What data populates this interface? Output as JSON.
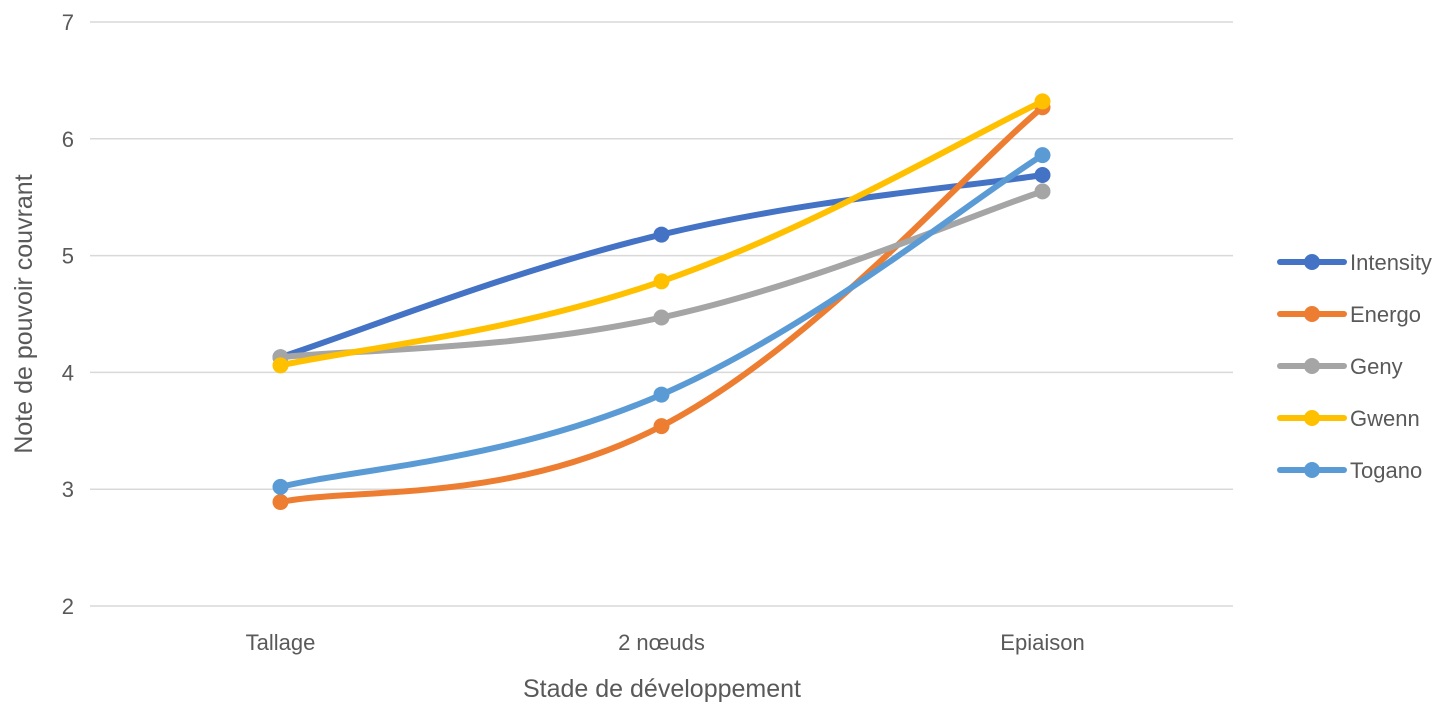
{
  "chart_data": {
    "type": "line",
    "title": "",
    "xlabel": "Stade de développement",
    "ylabel": "Note de pouvoir couvrant",
    "categories": [
      "Tallage",
      "2 nœuds",
      "Epiaison"
    ],
    "ylim": [
      2,
      7
    ],
    "yticks": [
      "2",
      "3",
      "4",
      "5",
      "6",
      "7"
    ],
    "grid": "horizontal",
    "legend_position": "right",
    "smoothed": true,
    "series": [
      {
        "name": "Intensity",
        "color": "#4472C4",
        "values": [
          4.13,
          5.18,
          5.69
        ]
      },
      {
        "name": "Energo",
        "color": "#ED7D31",
        "values": [
          2.89,
          3.54,
          6.27
        ]
      },
      {
        "name": "Geny",
        "color": "#A5A5A5",
        "values": [
          4.13,
          4.47,
          5.55
        ]
      },
      {
        "name": "Gwenn",
        "color": "#FFC000",
        "values": [
          4.06,
          4.78,
          6.32
        ]
      },
      {
        "name": "Togano",
        "color": "#5B9BD5",
        "values": [
          3.02,
          3.81,
          5.86
        ]
      }
    ]
  }
}
